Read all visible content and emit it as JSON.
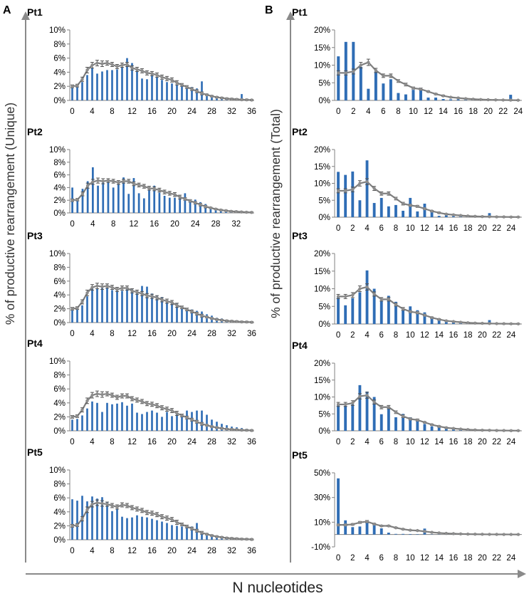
{
  "figure": {
    "panel_labels": [
      "A",
      "B"
    ],
    "y_title_left": "% of productive rearrangement (Unique)",
    "y_title_right": "% of productive rearrangement (Total)",
    "x_title": "N nucleotides"
  },
  "colors": {
    "bar": "#2f6db5",
    "line": "#7f7f7f",
    "marker": "#8c8c8c",
    "axis": "#808080",
    "arrow": "#8a8a8a"
  },
  "chart_data": [
    {
      "id": "A1",
      "panel": "A",
      "patient": "Pt1",
      "type": "bar+line",
      "title": "Pt1",
      "xlabel": "N nucleotides",
      "ylabel": "% of productive rearrangement (Unique)",
      "x_max": 36,
      "x_ticks": [
        0,
        4,
        8,
        12,
        16,
        20,
        24,
        28,
        32,
        36
      ],
      "y_ticks": [
        0,
        2,
        4,
        6,
        8,
        10
      ],
      "y_tick_labels": [
        "0%",
        "2%",
        "4%",
        "6%",
        "8%",
        "10%"
      ],
      "ylim": [
        0,
        10
      ],
      "bars": [
        2.0,
        2.1,
        2.6,
        3.6,
        4.6,
        3.8,
        4.1,
        4.3,
        4.3,
        4.4,
        4.7,
        6.0,
        5.3,
        4.2,
        3.1,
        3.0,
        3.6,
        3.3,
        2.9,
        2.6,
        2.4,
        2.2,
        2.1,
        2.0,
        1.9,
        1.7,
        2.7,
        1.0,
        0.7,
        0.6,
        0.4,
        0.3,
        0.3,
        0.2,
        0.9,
        0.2,
        0.1
      ],
      "line": [
        2.0,
        2.1,
        3.0,
        4.3,
        5.0,
        5.3,
        5.2,
        5.3,
        5.1,
        4.8,
        5.0,
        5.1,
        4.6,
        4.4,
        4.2,
        3.9,
        3.8,
        3.6,
        3.3,
        3.1,
        2.9,
        2.5,
        2.2,
        1.9,
        1.6,
        1.3,
        1.0,
        0.8,
        0.6,
        0.45,
        0.35,
        0.25,
        0.2,
        0.15,
        0.1,
        0.08,
        0.05
      ],
      "err": [
        0.2,
        0.2,
        0.3,
        0.4,
        0.4,
        0.4,
        0.4,
        0.3,
        0.3,
        0.3,
        0.3,
        0.3,
        0.3,
        0.3,
        0.3,
        0.3,
        0.3,
        0.3,
        0.3,
        0.3,
        0.3,
        0.3,
        0.2,
        0.2,
        0.2,
        0.2,
        0.2,
        0.1,
        0.1,
        0.1,
        0.1,
        0.1,
        0.1,
        0.1,
        0.1,
        0.1,
        0.1
      ]
    },
    {
      "id": "A2",
      "panel": "A",
      "patient": "Pt2",
      "type": "bar+line",
      "title": "Pt2",
      "xlabel": "N nucleotides",
      "ylabel": "% of productive rearrangement (Unique)",
      "x_max": 35,
      "x_ticks": [
        0,
        4,
        8,
        12,
        16,
        20,
        24,
        28,
        32
      ],
      "y_ticks": [
        0,
        2,
        4,
        6,
        8,
        10
      ],
      "y_tick_labels": [
        "0%",
        "2%",
        "4%",
        "6%",
        "8%",
        "10%"
      ],
      "ylim": [
        0,
        10
      ],
      "bars": [
        4.0,
        2.0,
        3.8,
        5.0,
        7.2,
        4.3,
        4.9,
        5.0,
        4.0,
        4.9,
        5.6,
        3.0,
        5.5,
        3.1,
        2.3,
        3.6,
        4.3,
        3.2,
        2.7,
        2.4,
        2.4,
        2.6,
        3.1,
        1.7,
        2.1,
        1.7,
        1.4,
        0.8,
        0.5,
        0.4,
        0.4,
        0.3,
        0.2,
        0.2,
        0.1,
        0.1
      ],
      "line": [
        2.0,
        2.1,
        3.0,
        4.3,
        4.9,
        5.1,
        5.0,
        5.1,
        5.0,
        4.8,
        5.0,
        5.0,
        4.6,
        4.4,
        4.2,
        3.9,
        3.8,
        3.6,
        3.3,
        3.1,
        2.9,
        2.5,
        2.2,
        1.9,
        1.6,
        1.3,
        1.0,
        0.8,
        0.6,
        0.45,
        0.35,
        0.25,
        0.2,
        0.15,
        0.1,
        0.08
      ],
      "err": [
        0.2,
        0.2,
        0.3,
        0.4,
        0.4,
        0.4,
        0.4,
        0.3,
        0.3,
        0.3,
        0.3,
        0.3,
        0.3,
        0.3,
        0.3,
        0.3,
        0.3,
        0.3,
        0.3,
        0.3,
        0.3,
        0.3,
        0.2,
        0.2,
        0.2,
        0.2,
        0.2,
        0.1,
        0.1,
        0.1,
        0.1,
        0.1,
        0.1,
        0.1,
        0.1,
        0.1
      ]
    },
    {
      "id": "A3",
      "panel": "A",
      "patient": "Pt3",
      "type": "bar+line",
      "title": "Pt3",
      "xlabel": "N nucleotides",
      "ylabel": "% of productive rearrangement (Unique)",
      "x_max": 36,
      "x_ticks": [
        0,
        4,
        8,
        12,
        16,
        20,
        24,
        28,
        32,
        36
      ],
      "y_ticks": [
        0,
        2,
        4,
        6,
        8,
        10
      ],
      "y_tick_labels": [
        "0%",
        "2%",
        "4%",
        "6%",
        "8%",
        "10%"
      ],
      "ylim": [
        0,
        10
      ],
      "bars": [
        1.8,
        1.9,
        2.5,
        3.8,
        5.0,
        4.9,
        5.0,
        5.0,
        4.7,
        4.6,
        4.6,
        5.0,
        4.9,
        4.6,
        5.3,
        5.2,
        4.2,
        3.9,
        3.7,
        3.3,
        3.1,
        2.8,
        2.4,
        2.1,
        1.9,
        1.7,
        1.6,
        1.2,
        1.0,
        0.7,
        0.6,
        0.4,
        0.3,
        0.3,
        0.2,
        0.2,
        0.1
      ],
      "line": [
        2.0,
        2.1,
        3.0,
        4.3,
        5.1,
        5.3,
        5.2,
        5.3,
        5.1,
        4.8,
        5.0,
        5.0,
        4.6,
        4.4,
        4.2,
        3.9,
        3.8,
        3.6,
        3.3,
        3.1,
        2.9,
        2.5,
        2.2,
        1.9,
        1.6,
        1.3,
        1.0,
        0.8,
        0.6,
        0.45,
        0.35,
        0.25,
        0.2,
        0.15,
        0.1,
        0.08,
        0.05
      ],
      "err": [
        0.2,
        0.2,
        0.3,
        0.4,
        0.4,
        0.4,
        0.4,
        0.3,
        0.3,
        0.3,
        0.3,
        0.3,
        0.3,
        0.3,
        0.3,
        0.3,
        0.3,
        0.3,
        0.3,
        0.3,
        0.3,
        0.3,
        0.2,
        0.2,
        0.2,
        0.2,
        0.2,
        0.1,
        0.1,
        0.1,
        0.1,
        0.1,
        0.1,
        0.1,
        0.1,
        0.1,
        0.1
      ]
    },
    {
      "id": "A4",
      "panel": "A",
      "patient": "Pt4",
      "type": "bar+line",
      "title": "Pt4",
      "xlabel": "N nucleotides",
      "ylabel": "% of productive rearrangement (Unique)",
      "x_max": 36,
      "x_ticks": [
        0,
        4,
        8,
        12,
        16,
        20,
        24,
        28,
        32,
        36
      ],
      "y_ticks": [
        0,
        2,
        4,
        6,
        8,
        10
      ],
      "y_tick_labels": [
        "0%",
        "2%",
        "4%",
        "6%",
        "8%",
        "10%"
      ],
      "ylim": [
        0,
        10
      ],
      "bars": [
        1.6,
        1.7,
        2.2,
        3.2,
        4.2,
        4.0,
        2.7,
        4.0,
        3.8,
        3.9,
        4.1,
        3.6,
        3.9,
        2.6,
        2.4,
        2.7,
        2.9,
        2.6,
        2.0,
        2.7,
        2.1,
        2.5,
        2.3,
        2.9,
        2.7,
        2.9,
        2.9,
        2.3,
        1.6,
        1.3,
        1.0,
        0.8,
        0.6,
        0.5,
        0.4,
        0.3,
        0.2
      ],
      "line": [
        2.0,
        2.1,
        3.0,
        4.3,
        5.1,
        5.3,
        5.2,
        5.3,
        5.1,
        4.8,
        5.0,
        5.0,
        4.6,
        4.4,
        4.2,
        3.9,
        3.8,
        3.6,
        3.3,
        3.1,
        2.9,
        2.5,
        2.2,
        1.9,
        1.6,
        1.3,
        1.0,
        0.8,
        0.6,
        0.45,
        0.35,
        0.25,
        0.2,
        0.15,
        0.1,
        0.08,
        0.05
      ],
      "err": [
        0.2,
        0.2,
        0.3,
        0.4,
        0.4,
        0.4,
        0.4,
        0.3,
        0.3,
        0.3,
        0.3,
        0.3,
        0.3,
        0.3,
        0.3,
        0.3,
        0.3,
        0.3,
        0.3,
        0.3,
        0.3,
        0.3,
        0.2,
        0.2,
        0.2,
        0.2,
        0.2,
        0.1,
        0.1,
        0.1,
        0.1,
        0.1,
        0.1,
        0.1,
        0.1,
        0.1,
        0.1
      ]
    },
    {
      "id": "A5",
      "panel": "A",
      "patient": "Pt5",
      "type": "bar+line",
      "title": "Pt5",
      "xlabel": "N nucleotides",
      "ylabel": "% of productive rearrangement (Unique)",
      "x_max": 36,
      "x_ticks": [
        0,
        4,
        8,
        12,
        16,
        20,
        24,
        28,
        32,
        36
      ],
      "y_ticks": [
        0,
        2,
        4,
        6,
        8,
        10
      ],
      "y_tick_labels": [
        "0%",
        "2%",
        "4%",
        "6%",
        "8%",
        "10%"
      ],
      "ylim": [
        0,
        10
      ],
      "bars": [
        5.8,
        5.6,
        6.3,
        5.5,
        6.2,
        5.9,
        6.1,
        5.4,
        4.1,
        4.4,
        3.3,
        3.1,
        3.2,
        3.5,
        3.3,
        3.2,
        3.0,
        2.8,
        2.6,
        2.4,
        2.1,
        2.0,
        1.9,
        1.8,
        1.9,
        2.4,
        1.1,
        0.8,
        0.6,
        0.5,
        0.4,
        0.3,
        0.2,
        0.2,
        0.1,
        0.1,
        0.1
      ],
      "line": [
        2.0,
        2.1,
        3.0,
        4.3,
        5.1,
        5.3,
        5.2,
        5.1,
        4.9,
        4.7,
        5.0,
        4.9,
        4.6,
        4.4,
        4.2,
        3.9,
        3.8,
        3.6,
        3.3,
        3.1,
        2.9,
        2.5,
        2.2,
        1.9,
        1.6,
        1.3,
        1.0,
        0.8,
        0.6,
        0.45,
        0.35,
        0.25,
        0.2,
        0.15,
        0.1,
        0.08,
        0.05
      ],
      "err": [
        0.2,
        0.2,
        0.3,
        0.4,
        0.4,
        0.4,
        0.4,
        0.3,
        0.3,
        0.3,
        0.3,
        0.3,
        0.3,
        0.3,
        0.3,
        0.3,
        0.3,
        0.3,
        0.3,
        0.3,
        0.3,
        0.3,
        0.2,
        0.2,
        0.2,
        0.2,
        0.2,
        0.1,
        0.1,
        0.1,
        0.1,
        0.1,
        0.1,
        0.1,
        0.1,
        0.1,
        0.1
      ]
    },
    {
      "id": "B1",
      "panel": "B",
      "patient": "Pt1",
      "type": "bar+line",
      "title": "Pt1",
      "xlabel": "N nucleotides",
      "ylabel": "% of productive rearrangement (Total)",
      "x_max": 24,
      "x_ticks": [
        0,
        2,
        4,
        6,
        8,
        10,
        12,
        14,
        16,
        18,
        20,
        22,
        24
      ],
      "y_ticks": [
        0,
        5,
        10,
        15,
        20
      ],
      "y_tick_labels": [
        "0%",
        "5%",
        "10%",
        "15%",
        "20%"
      ],
      "ylim": [
        0,
        20
      ],
      "bars": [
        12.5,
        16.6,
        16.6,
        9.5,
        3.3,
        8.2,
        4.8,
        6.0,
        2.1,
        1.7,
        3.0,
        3.6,
        0.8,
        0.8,
        0.4,
        0.3,
        0.3,
        0.2,
        0.2,
        0.2,
        0.1,
        0.1,
        0.1,
        1.6,
        0.1
      ],
      "line": [
        7.8,
        7.8,
        8.2,
        10.0,
        10.8,
        8.5,
        7.0,
        7.0,
        5.5,
        4.5,
        3.5,
        3.2,
        2.5,
        1.8,
        1.3,
        0.9,
        0.7,
        0.5,
        0.35,
        0.25,
        0.18,
        0.14,
        0.1,
        0.08,
        0.05
      ],
      "err": [
        0.6,
        0.6,
        0.7,
        0.8,
        0.9,
        0.6,
        0.5,
        0.5,
        0.4,
        0.4,
        0.3,
        0.3,
        0.2,
        0.2,
        0.2,
        0.1,
        0.1,
        0.1,
        0.1,
        0.1,
        0.1,
        0.1,
        0.1,
        0.1,
        0.1
      ]
    },
    {
      "id": "B2",
      "panel": "B",
      "patient": "Pt2",
      "type": "bar+line",
      "title": "Pt2",
      "xlabel": "N nucleotides",
      "ylabel": "% of productive rearrangement (Total)",
      "x_max": 25,
      "x_ticks": [
        0,
        2,
        4,
        6,
        8,
        10,
        12,
        14,
        16,
        18,
        20,
        22,
        24
      ],
      "y_ticks": [
        0,
        5,
        10,
        15,
        20
      ],
      "y_tick_labels": [
        "0%",
        "5%",
        "10%",
        "15%",
        "20%"
      ],
      "ylim": [
        0,
        20
      ],
      "bars": [
        13.4,
        12.5,
        13.5,
        5.0,
        16.8,
        4.2,
        5.7,
        3.2,
        3.6,
        1.9,
        5.7,
        1.7,
        4.0,
        1.7,
        0.4,
        0.6,
        0.3,
        0.2,
        0.2,
        0.2,
        0.1,
        1.2,
        0.1,
        0.1,
        0.1,
        0.1
      ],
      "line": [
        7.8,
        7.8,
        8.2,
        10.0,
        10.5,
        8.5,
        7.0,
        7.0,
        5.5,
        4.0,
        3.5,
        3.2,
        2.5,
        1.8,
        1.3,
        0.9,
        0.7,
        0.5,
        0.35,
        0.25,
        0.18,
        0.14,
        0.1,
        0.08,
        0.05,
        0.04
      ],
      "err": [
        0.6,
        0.6,
        0.7,
        0.8,
        0.9,
        0.6,
        0.5,
        0.5,
        0.4,
        0.4,
        0.3,
        0.3,
        0.2,
        0.2,
        0.2,
        0.1,
        0.1,
        0.1,
        0.1,
        0.1,
        0.1,
        0.1,
        0.1,
        0.1,
        0.1,
        0.1
      ]
    },
    {
      "id": "B3",
      "panel": "B",
      "patient": "Pt3",
      "type": "bar+line",
      "title": "Pt3",
      "xlabel": "N nucleotides",
      "ylabel": "% of productive rearrangement (Total)",
      "x_max": 25,
      "x_ticks": [
        0,
        2,
        4,
        6,
        8,
        10,
        12,
        14,
        16,
        18,
        20,
        22,
        24
      ],
      "y_ticks": [
        0,
        5,
        10,
        15,
        20
      ],
      "y_tick_labels": [
        "0%",
        "5%",
        "10%",
        "15%",
        "20%"
      ],
      "ylim": [
        0,
        20
      ],
      "bars": [
        8.0,
        5.3,
        7.3,
        9.0,
        15.2,
        10.0,
        6.6,
        8.0,
        6.3,
        3.9,
        5.0,
        3.9,
        3.3,
        1.8,
        1.2,
        0.8,
        0.6,
        0.4,
        0.3,
        0.2,
        0.2,
        1.1,
        0.1,
        0.1,
        0.1,
        0.1
      ],
      "line": [
        7.8,
        7.8,
        8.2,
        10.0,
        10.5,
        8.5,
        7.0,
        7.0,
        5.5,
        4.3,
        3.5,
        3.2,
        2.5,
        1.8,
        1.3,
        0.9,
        0.7,
        0.5,
        0.35,
        0.25,
        0.18,
        0.14,
        0.1,
        0.08,
        0.05,
        0.04
      ],
      "err": [
        0.6,
        0.6,
        0.7,
        0.8,
        0.9,
        0.6,
        0.5,
        0.5,
        0.4,
        0.4,
        0.3,
        0.3,
        0.2,
        0.2,
        0.2,
        0.1,
        0.1,
        0.1,
        0.1,
        0.1,
        0.1,
        0.1,
        0.1,
        0.1,
        0.1,
        0.1
      ]
    },
    {
      "id": "B4",
      "panel": "B",
      "patient": "Pt4",
      "type": "bar+line",
      "title": "Pt4",
      "xlabel": "N nucleotides",
      "ylabel": "% of productive rearrangement (Total)",
      "x_max": 25,
      "x_ticks": [
        0,
        2,
        4,
        6,
        8,
        10,
        12,
        14,
        16,
        18,
        20,
        22,
        24
      ],
      "y_ticks": [
        0,
        5,
        10,
        15,
        20
      ],
      "y_tick_labels": [
        "0%",
        "5%",
        "10%",
        "15%",
        "20%"
      ],
      "ylim": [
        0,
        20
      ],
      "bars": [
        7.9,
        7.4,
        7.8,
        13.5,
        11.6,
        10.0,
        4.9,
        7.2,
        4.0,
        5.0,
        4.0,
        3.5,
        2.0,
        1.3,
        1.1,
        1.2,
        0.6,
        0.4,
        0.3,
        0.2,
        0.2,
        0.2,
        0.1,
        0.1,
        0.1,
        0.1
      ],
      "line": [
        7.8,
        7.8,
        8.2,
        10.2,
        10.5,
        8.5,
        7.0,
        7.0,
        5.5,
        4.3,
        3.5,
        3.2,
        2.5,
        1.8,
        1.3,
        0.9,
        0.7,
        0.5,
        0.35,
        0.25,
        0.18,
        0.14,
        0.1,
        0.08,
        0.05,
        0.04
      ],
      "err": [
        0.6,
        0.6,
        0.7,
        0.8,
        0.9,
        0.6,
        0.5,
        0.5,
        0.4,
        0.4,
        0.3,
        0.3,
        0.2,
        0.2,
        0.2,
        0.1,
        0.1,
        0.1,
        0.1,
        0.1,
        0.1,
        0.1,
        0.1,
        0.1,
        0.1,
        0.1
      ]
    },
    {
      "id": "B5",
      "panel": "B",
      "patient": "Pt5",
      "type": "bar+line",
      "title": "Pt5",
      "xlabel": "N nucleotides",
      "ylabel": "% of productive rearrangement (Total)",
      "x_max": 25,
      "x_ticks": [
        0,
        2,
        4,
        6,
        8,
        10,
        12,
        14,
        16,
        18,
        20,
        22,
        24
      ],
      "y_ticks": [
        -10,
        10,
        30,
        50
      ],
      "y_tick_labels": [
        "-10%",
        "10%",
        "30%",
        "50%"
      ],
      "ylim": [
        -10,
        50
      ],
      "bars": [
        45.5,
        11.5,
        6.0,
        6.5,
        11.0,
        7.5,
        5.0,
        1.5,
        0.5,
        0.5,
        0.4,
        0.3,
        4.8,
        0.2,
        0.2,
        0.2,
        0.1,
        0.1,
        0.1,
        0.1,
        0.1,
        0.1,
        0.1,
        0.1,
        0.1,
        0.1
      ],
      "line": [
        7.8,
        7.8,
        8.2,
        9.8,
        10.5,
        8.5,
        7.0,
        7.0,
        5.5,
        4.3,
        3.5,
        3.2,
        2.5,
        1.8,
        1.3,
        0.9,
        0.7,
        0.5,
        0.35,
        0.25,
        0.18,
        0.14,
        0.1,
        0.08,
        0.05,
        0.04
      ],
      "err": [
        0.6,
        0.6,
        0.7,
        0.8,
        0.9,
        0.6,
        0.5,
        0.5,
        0.4,
        0.4,
        0.3,
        0.3,
        0.2,
        0.2,
        0.2,
        0.1,
        0.1,
        0.1,
        0.1,
        0.1,
        0.1,
        0.1,
        0.1,
        0.1,
        0.1,
        0.1
      ]
    }
  ]
}
